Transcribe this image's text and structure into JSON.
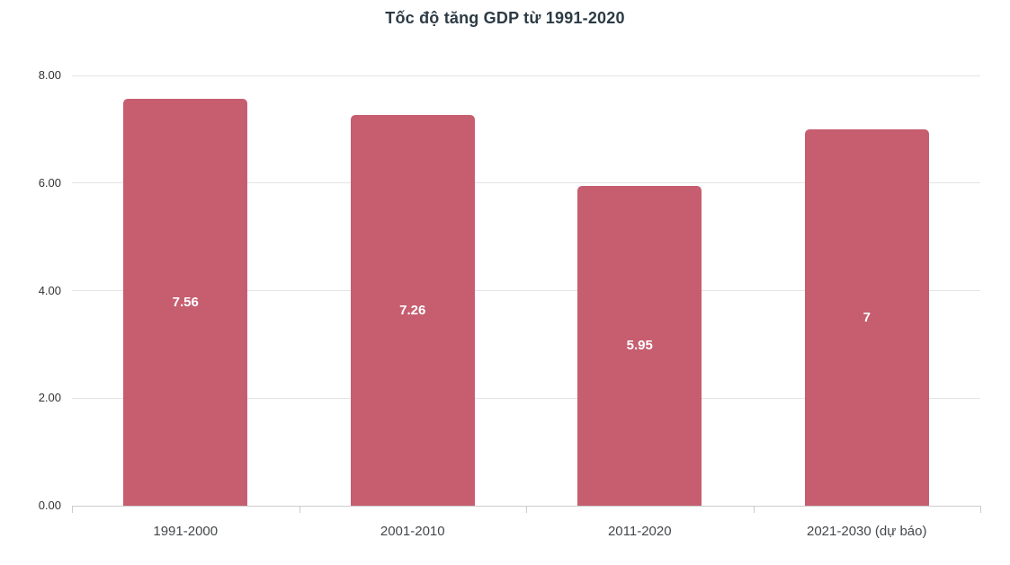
{
  "title": "Tốc độ tăng GDP từ 1991-2020",
  "chart_data": {
    "type": "bar",
    "title": "Tốc độ tăng GDP từ 1991-2020",
    "categories": [
      "1991-2000",
      "2001-2010",
      "2011-2020",
      "2021-2030 (dự báo)"
    ],
    "values": [
      7.56,
      7.26,
      5.95,
      7
    ],
    "value_labels": [
      "7.56",
      "7.26",
      "5.95",
      "7"
    ],
    "xlabel": "",
    "ylabel": "",
    "ylim": [
      0,
      8
    ],
    "ytick_values": [
      0,
      2,
      4,
      6,
      8
    ],
    "ytick_labels": [
      "0.00",
      "2.00",
      "4.00",
      "6.00",
      "8.00"
    ],
    "grid": true,
    "legend": "none",
    "bar_color": "#c65e70",
    "value_label_color": "#ffffff",
    "gridline_color": "#e4e4e4",
    "axis_line_color": "#cccccc",
    "ytick_text_color": "#333333",
    "xtick_text_color": "#44474a",
    "title_color": "#2c3b45"
  }
}
